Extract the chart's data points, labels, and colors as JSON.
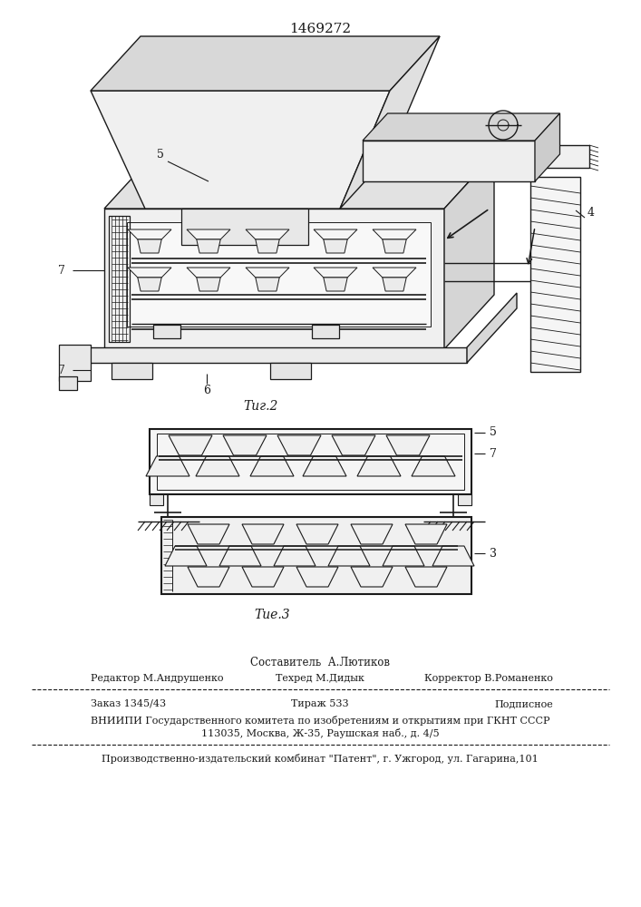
{
  "title": "1469272",
  "fig2_caption": "Τиг.2",
  "fig3_caption": "Τие.3",
  "footer_compiler": "Составитель  А.Лютиков",
  "footer_editor": "Редактор М.Андрушенко",
  "footer_tech": "Техред М.Дидык",
  "footer_corr": "Корректор В.Романенко",
  "footer_order": "Заказ 1345/43",
  "footer_tir": "Тираж 533",
  "footer_pod": "Подписное",
  "footer_vni": "ВНИИПИ Государственного комитета по изобретениям и открытиям при ГКНТ СССР",
  "footer_addr": "113035, Москва, Ж-35, Раушская наб., д. 4/5",
  "footer_pub": "Производственно-издательский комбинат \"Патент\", г. Ужгород, ул. Гагарина,101"
}
